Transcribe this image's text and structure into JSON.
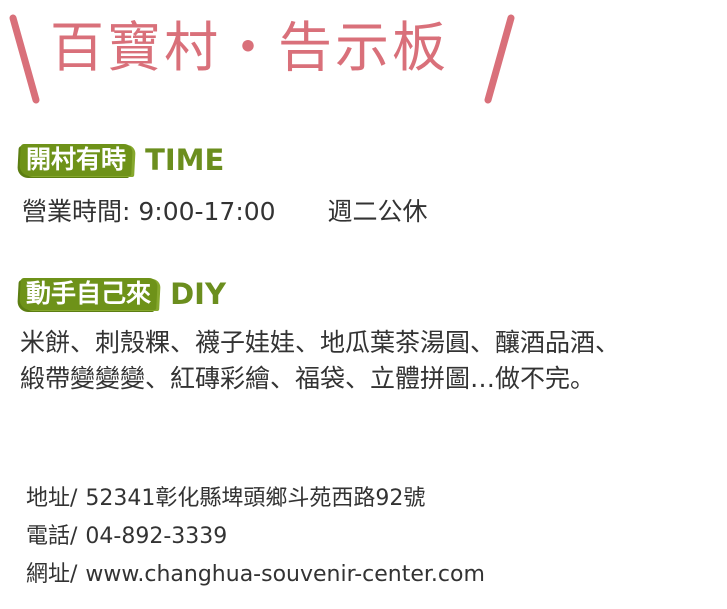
{
  "title": {
    "text": "百寶村・告示板",
    "color": "#d9707a"
  },
  "hours": {
    "heading_zh": "開村有時",
    "heading_en": "TIME",
    "open_text": "營業時間: 9:00-17:00",
    "closed_text": "週二公休"
  },
  "diy": {
    "heading_zh": "動手自己來",
    "heading_en": "DIY",
    "line1": "米餅、刺殼粿、襪子娃娃、地瓜葉茶湯圓、釀酒品酒、",
    "line2": "緞帶變變變、紅磚彩繪、福袋、立體拼圖…做不完。"
  },
  "contact": {
    "address_label": "地址/",
    "address_value": "52341彰化縣埤頭鄉斗苑西路92號",
    "phone_label": "電話/",
    "phone_value": "04-892-3339",
    "website_label": "網址/",
    "website_value": "www.changhua-souvenir-center.com"
  },
  "colors": {
    "accent_green": "#6e9219",
    "heading_green": "#6b8e1e",
    "title_pink": "#d9707a",
    "text": "#333333"
  }
}
